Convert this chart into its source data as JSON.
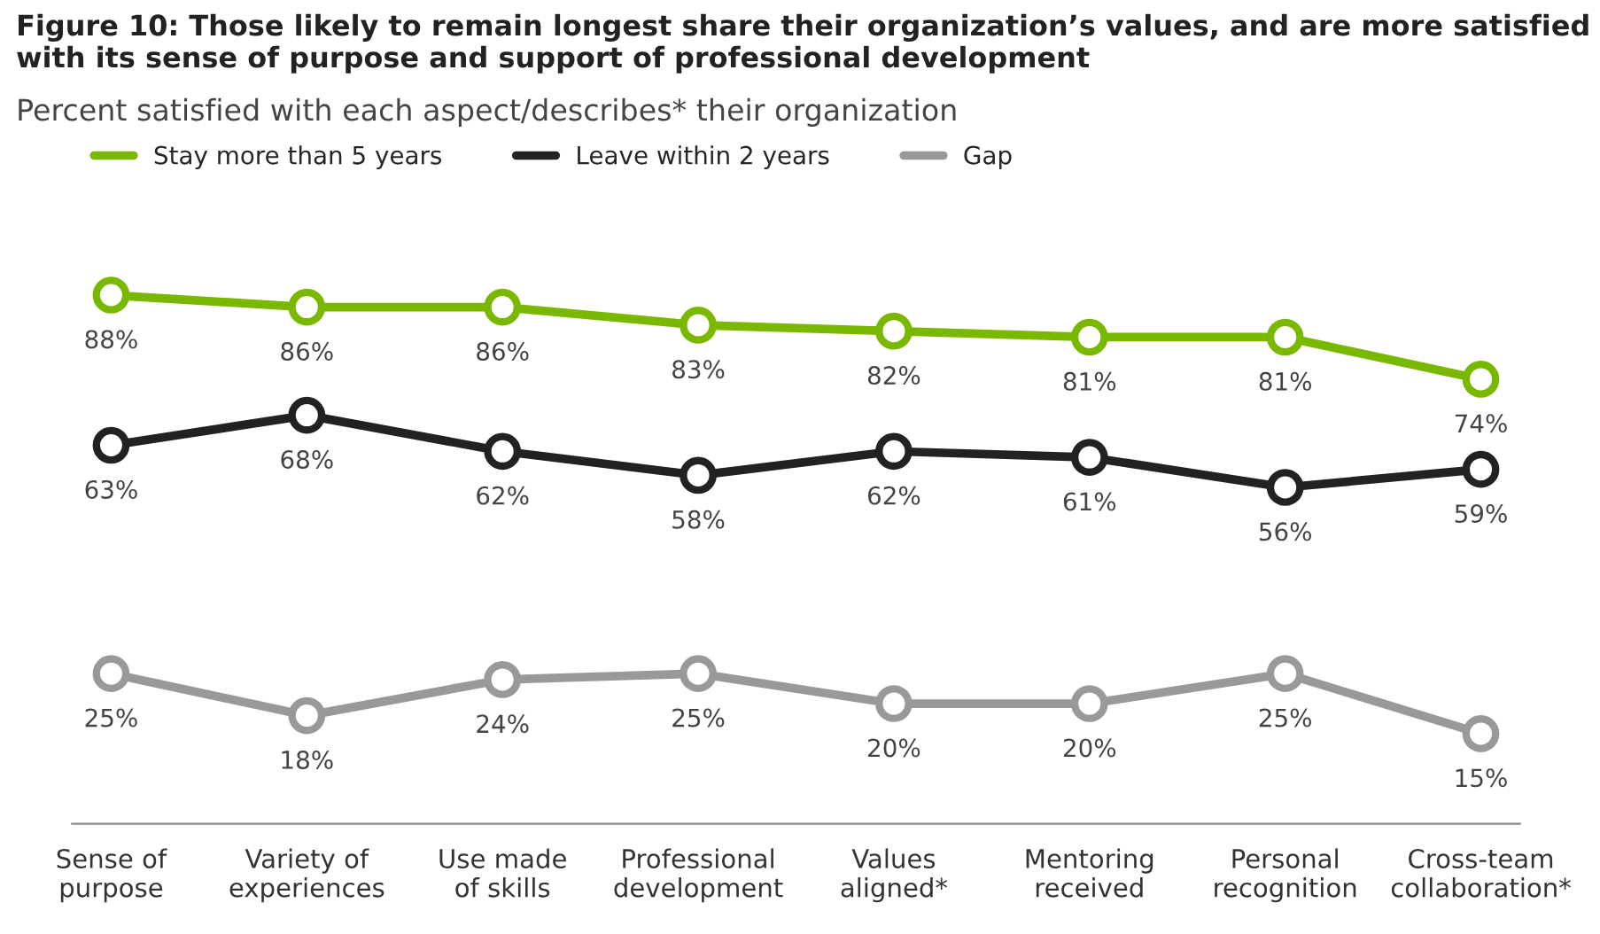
{
  "chart_data": {
    "type": "line",
    "title": "Figure 10: Those likely to remain longest share their organization’s values, and are more satisfied\nwith its sense of purpose and support of professional development",
    "subtitle": "Percent satisfied with each aspect/describes* their organization",
    "categories": [
      "Sense of\npurpose",
      "Variety of\nexperiences",
      "Use made\nof skills",
      "Professional\ndevelopment",
      "Values\naligned*",
      "Mentoring\nreceived",
      "Personal\nrecognition",
      "Cross-team\ncollaboration*"
    ],
    "series": [
      {
        "name": "Stay more than 5 years",
        "color": "#7ab800",
        "values": [
          88,
          86,
          86,
          83,
          82,
          81,
          81,
          74
        ],
        "value_labels": [
          "88%",
          "86%",
          "86%",
          "83%",
          "82%",
          "81%",
          "81%",
          "74%"
        ]
      },
      {
        "name": "Leave within 2 years",
        "color": "#222222",
        "values": [
          63,
          68,
          62,
          58,
          62,
          61,
          56,
          59
        ],
        "value_labels": [
          "63%",
          "68%",
          "62%",
          "58%",
          "62%",
          "61%",
          "56%",
          "59%"
        ]
      },
      {
        "name": "Gap",
        "color": "#999999",
        "values": [
          25,
          18,
          24,
          25,
          20,
          20,
          25,
          15
        ],
        "value_labels": [
          "25%",
          "18%",
          "24%",
          "25%",
          "20%",
          "20%",
          "25%",
          "15%"
        ]
      }
    ],
    "marker": "circle",
    "line_style": "solid",
    "legend": "top left"
  }
}
